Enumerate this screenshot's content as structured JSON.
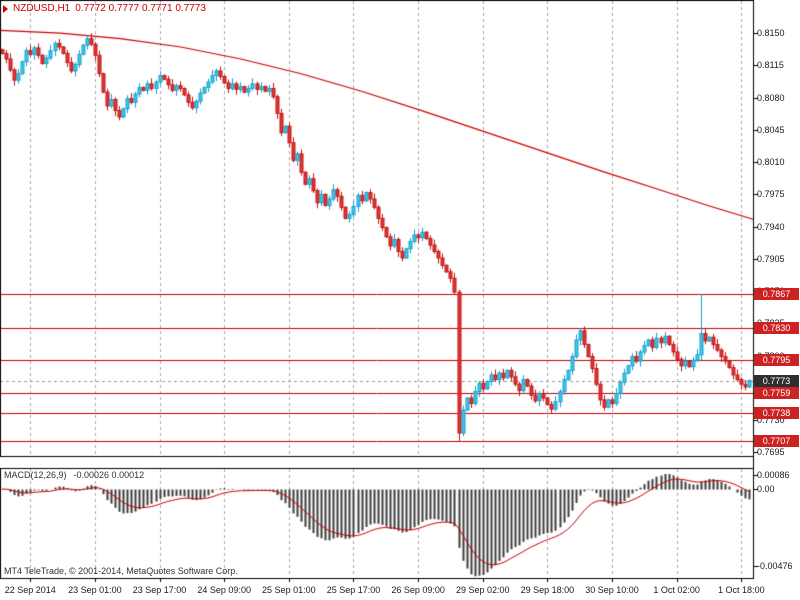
{
  "header": {
    "symbol": "NZDUSD,H1",
    "ohlc": "0.7772 0.7777 0.7771 0.7773"
  },
  "macd": {
    "label": "MACD(12,26,9)",
    "values_text": "-0.00026 0.00012"
  },
  "footer": {
    "copyright": "MT4 TeleTrade, © 2001-2014, MetaQuotes Software Corp."
  },
  "colors": {
    "bull_fill": "#3fc6ea",
    "bull_stroke": "#17a3cd",
    "bear_fill": "#e03535",
    "bear_stroke": "#c01818",
    "line_red": "#cc0000",
    "histogram": "#3c3c3c",
    "badge_red": "#cc2222",
    "badge_dark": "#2f2f2f",
    "grid": "#a8a8a8",
    "border": "#000000",
    "current_line": "#999999"
  },
  "chart_data": {
    "type": "candlestick",
    "title": "NZDUSD,H1",
    "symbol": "NZDUSD",
    "timeframe": "H1",
    "price_axis": {
      "max_price": 0.8186,
      "min_price": 0.769,
      "labels": [
        "0.8150",
        "0.8115",
        "0.8080",
        "0.8045",
        "0.8010",
        "0.7975",
        "0.7940",
        "0.7905",
        "0.7870",
        "0.7835",
        "0.7800",
        "0.7765",
        "0.7730",
        "0.7695"
      ]
    },
    "levels": [
      {
        "value": 0.7867,
        "label": "0.7867"
      },
      {
        "value": 0.783,
        "label": "0.7830"
      },
      {
        "value": 0.7795,
        "label": "0.7795"
      },
      {
        "value": 0.7759,
        "label": "0.7759"
      },
      {
        "value": 0.7738,
        "label": "0.7738"
      },
      {
        "value": 0.7707,
        "label": "0.7707"
      }
    ],
    "current_price": {
      "value": 0.7773,
      "label": "0.7773"
    },
    "first_open": 0.8132,
    "closes": [
      0.8128,
      0.8122,
      0.811,
      0.8099,
      0.8106,
      0.8119,
      0.8131,
      0.8127,
      0.8134,
      0.8126,
      0.8117,
      0.8123,
      0.8131,
      0.8139,
      0.8135,
      0.8128,
      0.8118,
      0.8109,
      0.8116,
      0.8127,
      0.8137,
      0.8144,
      0.8138,
      0.8126,
      0.8106,
      0.8086,
      0.8071,
      0.8078,
      0.8066,
      0.8059,
      0.8068,
      0.8079,
      0.8075,
      0.8084,
      0.8091,
      0.8088,
      0.8095,
      0.809,
      0.8097,
      0.8104,
      0.81,
      0.8094,
      0.8088,
      0.8093,
      0.809,
      0.8083,
      0.8075,
      0.8069,
      0.8076,
      0.8085,
      0.8091,
      0.8097,
      0.8104,
      0.8109,
      0.8103,
      0.8096,
      0.809,
      0.8095,
      0.8089,
      0.8092,
      0.8086,
      0.809,
      0.8095,
      0.8089,
      0.8092,
      0.8087,
      0.809,
      0.8081,
      0.8063,
      0.8042,
      0.8049,
      0.8031,
      0.8012,
      0.8019,
      0.7999,
      0.7986,
      0.7992,
      0.7979,
      0.7966,
      0.7975,
      0.7963,
      0.797,
      0.798,
      0.7973,
      0.7961,
      0.7949,
      0.7953,
      0.7962,
      0.7974,
      0.7968,
      0.7977,
      0.797,
      0.7961,
      0.7949,
      0.7939,
      0.7929,
      0.7919,
      0.7926,
      0.7913,
      0.7906,
      0.7916,
      0.7924,
      0.7931,
      0.7928,
      0.7934,
      0.7927,
      0.792,
      0.7913,
      0.7906,
      0.7898,
      0.7891,
      0.7884,
      0.7869,
      0.7716,
      0.7741,
      0.7754,
      0.7748,
      0.7761,
      0.777,
      0.7764,
      0.7772,
      0.7779,
      0.7774,
      0.7781,
      0.7776,
      0.7784,
      0.7777,
      0.7769,
      0.7762,
      0.7774,
      0.7767,
      0.7757,
      0.7751,
      0.7759,
      0.7754,
      0.7747,
      0.7742,
      0.775,
      0.7761,
      0.7774,
      0.7784,
      0.7799,
      0.7817,
      0.7827,
      0.7812,
      0.7799,
      0.7786,
      0.7769,
      0.7752,
      0.7744,
      0.7752,
      0.7748,
      0.7759,
      0.7771,
      0.7781,
      0.7789,
      0.7799,
      0.7794,
      0.7804,
      0.7811,
      0.7817,
      0.7809,
      0.7819,
      0.7814,
      0.7821,
      0.7812,
      0.7804,
      0.7796,
      0.7789,
      0.7794,
      0.7788,
      0.7795,
      0.7801,
      0.7824,
      0.7816,
      0.782,
      0.7812,
      0.7806,
      0.7799,
      0.7794,
      0.7787,
      0.7779,
      0.7774,
      0.7769,
      0.7766,
      0.7773
    ],
    "wick_overrides": {
      "113": {
        "low": 0.7707
      },
      "143": {
        "high": 0.783
      },
      "173": {
        "high": 0.7867
      }
    },
    "ma_points": [
      [
        0.0,
        0.8153
      ],
      [
        0.08,
        0.815
      ],
      [
        0.16,
        0.8144
      ],
      [
        0.24,
        0.8135
      ],
      [
        0.32,
        0.8122
      ],
      [
        0.4,
        0.8106
      ],
      [
        0.48,
        0.8087
      ],
      [
        0.56,
        0.8066
      ],
      [
        0.64,
        0.8044
      ],
      [
        0.72,
        0.8022
      ],
      [
        0.8,
        0.8
      ],
      [
        0.88,
        0.7979
      ],
      [
        0.94,
        0.7963
      ],
      [
        1.0,
        0.7948
      ]
    ],
    "time_labels": [
      {
        "label": "22 Sep 2014",
        "i": 7
      },
      {
        "label": "23 Sep 01:00",
        "i": 23
      },
      {
        "label": "23 Sep 17:00",
        "i": 39
      },
      {
        "label": "24 Sep 09:00",
        "i": 55
      },
      {
        "label": "25 Sep 01:00",
        "i": 71
      },
      {
        "label": "25 Sep 17:00",
        "i": 87
      },
      {
        "label": "26 Sep 09:00",
        "i": 103
      },
      {
        "label": "29 Sep 02:00",
        "i": 119
      },
      {
        "label": "29 Sep 18:00",
        "i": 135
      },
      {
        "label": "30 Sep 10:00",
        "i": 151
      },
      {
        "label": "1 Oct 02:00",
        "i": 167
      },
      {
        "label": "1 Oct 18:00",
        "i": 183
      }
    ],
    "macd_panel": {
      "type": "macd-histogram",
      "fast": 12,
      "slow": 26,
      "signal": 9,
      "max": 0.0013,
      "min": -0.0055,
      "axis_labels": [
        {
          "label": "0.00086",
          "value": 0.00086
        },
        {
          "label": "0.00",
          "value": 0
        },
        {
          "label": "-0.00476",
          "value": -0.00476
        }
      ]
    }
  }
}
